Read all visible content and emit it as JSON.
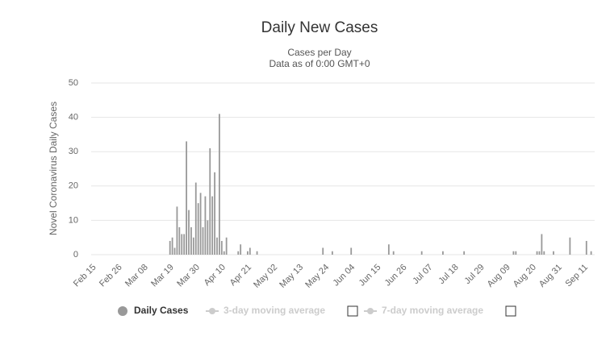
{
  "chart_data": {
    "type": "bar",
    "title": "Daily New Cases",
    "subtitle": [
      "Cases per Day",
      "Data as of 0:00 GMT+0"
    ],
    "y_label": "Novel Coronavirus Daily Cases",
    "categories": [
      "Feb 15",
      null,
      null,
      null,
      null,
      null,
      null,
      null,
      null,
      null,
      null,
      "Feb 26",
      null,
      null,
      null,
      null,
      null,
      null,
      null,
      null,
      null,
      null,
      "Mar 08",
      null,
      null,
      null,
      null,
      null,
      null,
      null,
      null,
      null,
      null,
      "Mar 19",
      null,
      null,
      null,
      null,
      null,
      null,
      null,
      null,
      null,
      null,
      "Mar 30",
      null,
      null,
      null,
      null,
      null,
      null,
      null,
      null,
      null,
      null,
      "Apr 10",
      null,
      null,
      null,
      null,
      null,
      null,
      null,
      null,
      null,
      null,
      "Apr 21",
      null,
      null,
      null,
      null,
      null,
      null,
      null,
      null,
      null,
      null,
      "May 02",
      null,
      null,
      null,
      null,
      null,
      null,
      null,
      null,
      null,
      null,
      "May 13",
      null,
      null,
      null,
      null,
      null,
      null,
      null,
      null,
      null,
      null,
      "May 24",
      null,
      null,
      null,
      null,
      null,
      null,
      null,
      null,
      null,
      null,
      "Jun 04",
      null,
      null,
      null,
      null,
      null,
      null,
      null,
      null,
      null,
      null,
      "Jun 15",
      null,
      null,
      null,
      null,
      null,
      null,
      null,
      null,
      null,
      null,
      "Jun 26",
      null,
      null,
      null,
      null,
      null,
      null,
      null,
      null,
      null,
      null,
      "Jul 07",
      null,
      null,
      null,
      null,
      null,
      null,
      null,
      null,
      null,
      null,
      "Jul 18",
      null,
      null,
      null,
      null,
      null,
      null,
      null,
      null,
      null,
      null,
      "Jul 29",
      null,
      null,
      null,
      null,
      null,
      null,
      null,
      null,
      null,
      null,
      "Aug 09",
      null,
      null,
      null,
      null,
      null,
      null,
      null,
      null,
      null,
      null,
      "Aug 20",
      null,
      null,
      null,
      null,
      null,
      null,
      null,
      null,
      null,
      null,
      "Aug 31",
      null,
      null,
      null,
      null,
      null,
      null,
      null,
      null,
      null,
      null,
      "Sep 11",
      null,
      null,
      null,
      null
    ],
    "series": [
      {
        "name": "Daily Cases",
        "color": "#999999",
        "values": [
          0,
          0,
          0,
          0,
          0,
          0,
          0,
          0,
          0,
          0,
          0,
          0,
          0,
          0,
          0,
          0,
          0,
          0,
          0,
          0,
          0,
          0,
          0,
          0,
          0,
          0,
          0,
          0,
          0,
          0,
          0,
          0,
          0,
          4,
          5,
          2,
          14,
          8,
          6,
          6,
          33,
          13,
          8,
          5,
          21,
          15,
          18,
          8,
          17,
          10,
          31,
          17,
          24,
          5,
          41,
          4,
          1,
          5,
          0,
          0,
          0,
          0,
          1,
          3,
          0,
          0,
          1,
          2,
          0,
          0,
          1,
          0,
          0,
          0,
          0,
          0,
          0,
          0,
          0,
          0,
          0,
          0,
          0,
          0,
          0,
          0,
          0,
          0,
          0,
          0,
          0,
          0,
          0,
          0,
          0,
          0,
          0,
          0,
          2,
          0,
          0,
          0,
          1,
          0,
          0,
          0,
          0,
          0,
          0,
          0,
          2,
          0,
          0,
          0,
          0,
          0,
          0,
          0,
          0,
          0,
          0,
          0,
          0,
          0,
          0,
          0,
          3,
          0,
          1,
          0,
          0,
          0,
          0,
          0,
          0,
          0,
          0,
          0,
          0,
          0,
          1,
          0,
          0,
          0,
          0,
          0,
          0,
          0,
          0,
          1,
          0,
          0,
          0,
          0,
          0,
          0,
          0,
          0,
          1,
          0,
          0,
          0,
          0,
          0,
          0,
          0,
          0,
          0,
          0,
          0,
          0,
          0,
          0,
          0,
          0,
          0,
          0,
          0,
          0,
          1,
          1,
          0,
          0,
          0,
          0,
          0,
          0,
          0,
          0,
          1,
          1,
          6,
          1,
          0,
          0,
          0,
          1,
          0,
          0,
          0,
          0,
          0,
          0,
          5,
          0,
          0,
          0,
          0,
          0,
          0,
          4,
          0,
          1,
          0
        ]
      }
    ],
    "hidden_series": [
      {
        "name": "3-day moving average",
        "color": "#cccccc"
      },
      {
        "name": "7-day moving average",
        "color": "#cccccc"
      }
    ],
    "ylim": [
      0,
      50
    ],
    "yticks": [
      0,
      10,
      20,
      30,
      40,
      50
    ],
    "grid": true,
    "legend": "bottom"
  }
}
